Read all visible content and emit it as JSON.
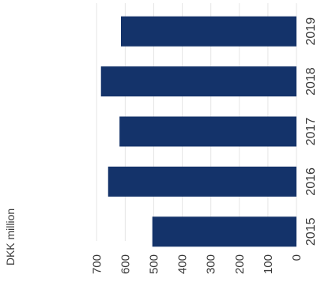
{
  "chart_data": {
    "type": "bar",
    "orientation": "horizontal",
    "unit_label": "DKK million",
    "categories": [
      "2019",
      "2018",
      "2017",
      "2016",
      "2015"
    ],
    "values": [
      615,
      685,
      620,
      660,
      505
    ],
    "xlim": [
      0,
      700
    ],
    "x_ticks": [
      "700",
      "600",
      "500",
      "400",
      "300",
      "200",
      "100",
      "0"
    ],
    "bar_color": "#14336a",
    "grid": true
  }
}
